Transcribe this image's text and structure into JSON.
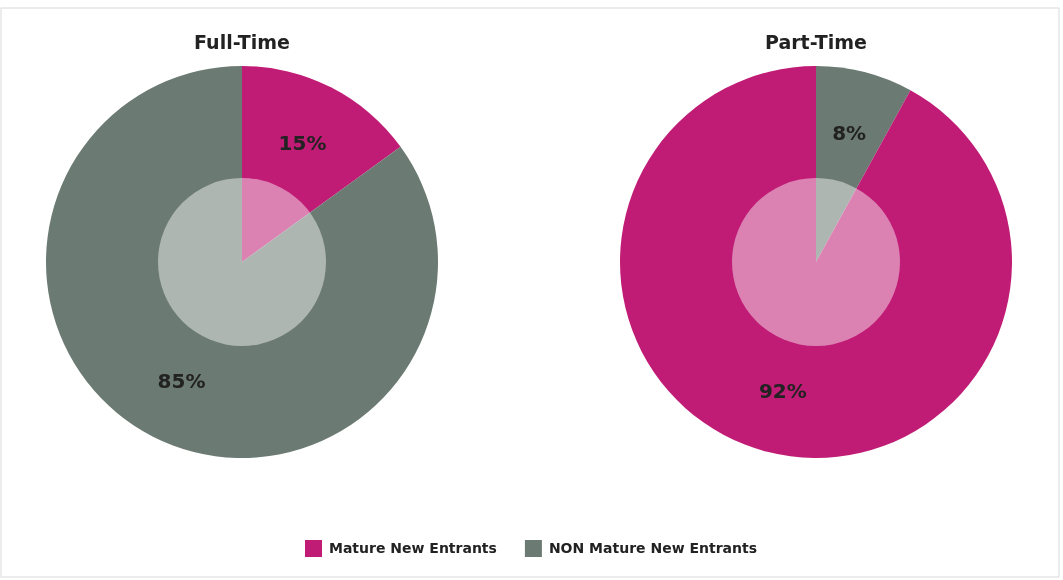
{
  "chart_data": [
    {
      "type": "donut",
      "title": "Full-Time",
      "categories": [
        "Mature New Entrants",
        "NON Mature New Entrants"
      ],
      "values": [
        15,
        85
      ],
      "value_labels": [
        "15%",
        "85%"
      ],
      "colors": [
        "#c01c76",
        "#6b7a72"
      ],
      "legend": "bottom"
    },
    {
      "type": "donut",
      "title": "Part-Time",
      "categories": [
        null,
        null
      ],
      "values": [
        8,
        92
      ],
      "value_labels": [
        "8%",
        "92%"
      ],
      "colors": [
        "#6b7a72",
        "#c01c76"
      ]
    }
  ]
}
